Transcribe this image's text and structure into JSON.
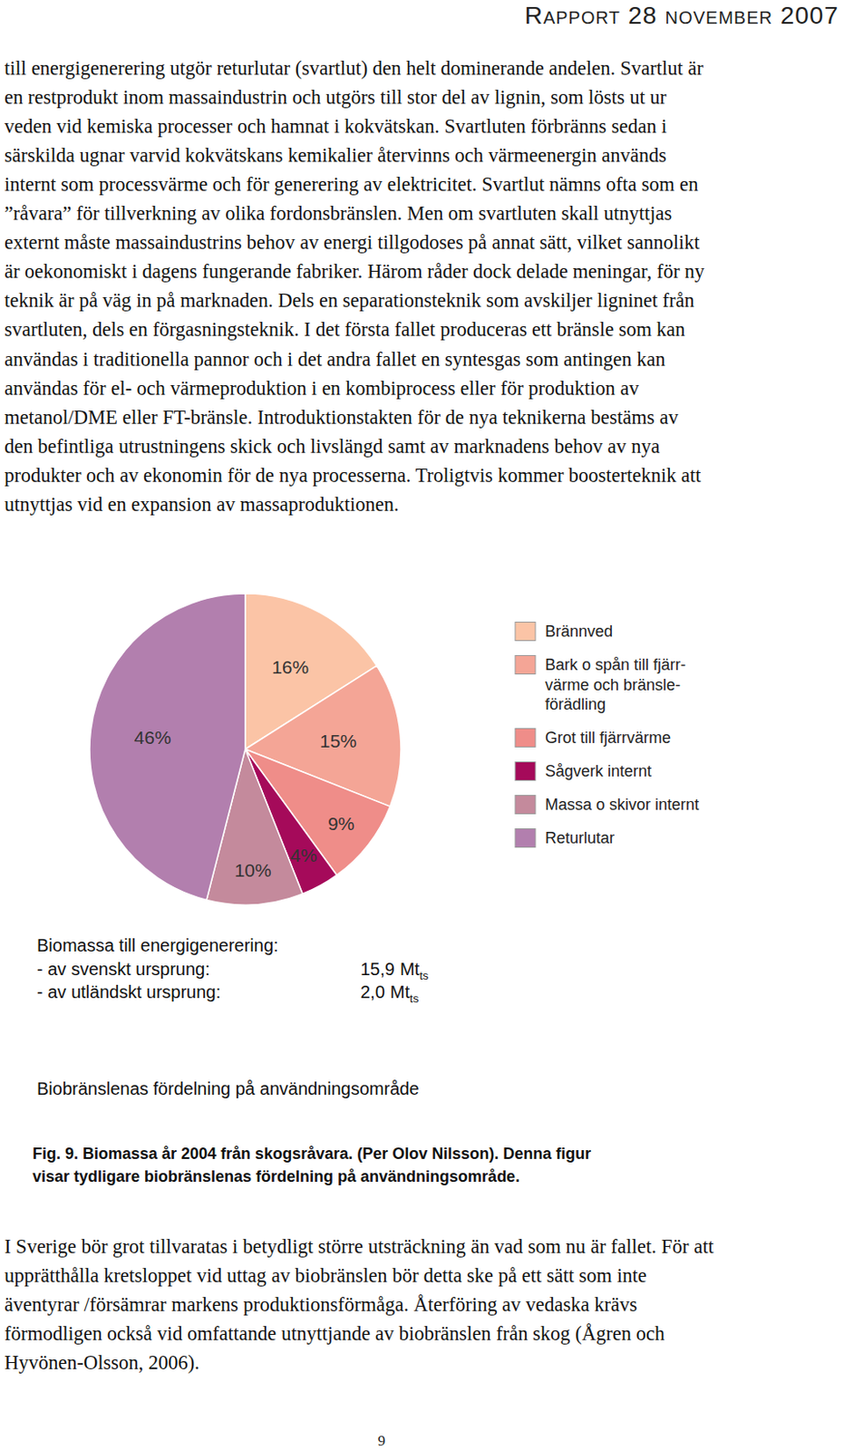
{
  "header": {
    "title": "Rapport 28 november 2007"
  },
  "paragraphs": [
    {
      "lines": [
        "till energigenerering utgör returlutar (svartlut) den helt dominerande andelen. Svartlut är",
        "en restprodukt inom massaindustrin och utgörs till stor del av lignin, som lösts ut ur",
        "veden vid kemiska processer och hamnat i kokvätskan. Svartluten förbränns sedan i",
        "särskilda ugnar varvid kokvätskans kemikalier återvinns och värmeenergin används",
        "internt som processvärme och för generering av elektricitet. Svartlut nämns ofta som en",
        "”råvara”  för tillverkning av olika fordonsbränslen. Men om svartluten skall utnyttjas",
        "externt måste massaindustrins behov av energi tillgodoses på annat sätt, vilket sannolikt",
        "är oekonomiskt i dagens fungerande fabriker. Härom råder dock delade meningar, för ny",
        "teknik är på väg in på marknaden. Dels en separationsteknik som avskiljer ligninet från",
        "svartluten, dels en förgasningsteknik. I det första fallet produceras ett bränsle som kan",
        "användas i traditionella pannor och i det andra fallet en syntesgas som antingen kan",
        "användas för el- och värmeproduktion i en kombiprocess eller för produktion av",
        "metanol/DME eller FT-bränsle. Introduktionstakten för de nya teknikerna bestäms av",
        "den befintliga utrustningens skick och livslängd samt av marknadens behov av nya",
        "produkter och av ekonomin för de nya processerna. Troligtvis kommer boosterteknik att",
        "utnyttjas vid en expansion av massaproduktionen."
      ]
    },
    {
      "lines": [
        "I Sverige bör grot tillvaratas i betydligt större utsträckning än vad som nu är fallet. För att",
        "upprätthålla kretsloppet vid uttag av biobränslen bör detta ske på ett sätt som inte",
        "äventyrar /försämrar markens produktionsförmåga. Återföring av vedaska krävs",
        "förmodligen också vid omfattande utnyttjande av biobränslen från skog (Ågren och",
        "Hyvönen-Olsson, 2006)."
      ]
    }
  ],
  "chart_data": {
    "type": "pie",
    "title": "Biobränslenas fördelning på användningsområde",
    "categories": [
      "Brännved",
      "Bark o spån till fjärr-\nvärme och bränsle-\nförädling",
      "Grot till fjärrvärme",
      "Sågverk internt",
      "Massa o skivor internt",
      "Returlutar"
    ],
    "values": [
      16,
      15,
      9,
      4,
      10,
      46
    ],
    "value_labels": [
      "16%",
      "15%",
      "9%",
      "4%",
      "10%",
      "46%"
    ],
    "colors": [
      "#fbc4a6",
      "#f4a596",
      "#ef8d89",
      "#a50a5a",
      "#c48a9c",
      "#b27fae"
    ],
    "data_labels": true,
    "legend": "right",
    "annotations": [
      {
        "text": "Biomassa till energigenerering:"
      },
      {
        "text": "- av svenskt ursprung:",
        "value": "15,9",
        "unit": "Mt",
        "subscript": "ts"
      },
      {
        "text": "- av utländskt ursprung:",
        "value": "2,0",
        "unit": "Mt",
        "subscript": "ts"
      }
    ]
  },
  "caption": {
    "lines": [
      "Fig. 9. Biomassa år 2004 från skogsråvara. (Per Olov Nilsson). Denna figur",
      "visar tydligare biobränslenas fördelning på användningsområde."
    ]
  },
  "footer": {
    "page_number": "9"
  }
}
